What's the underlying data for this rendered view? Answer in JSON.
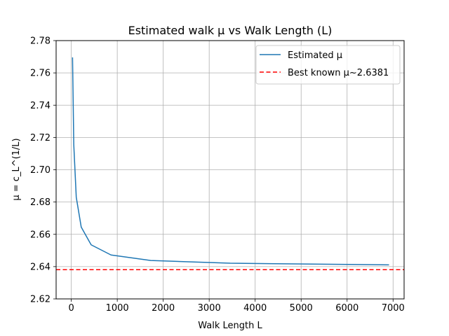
{
  "chart_data": {
    "type": "line",
    "title": "Estimated walk μ vs Walk Length (L)",
    "xlabel": "Walk Length L",
    "ylabel": "μ = c_L^(1/L)",
    "xlim": [
      -330,
      7240
    ],
    "ylim": [
      2.62,
      2.78
    ],
    "xticks": [
      0,
      1000,
      2000,
      3000,
      4000,
      5000,
      6000,
      7000
    ],
    "xtick_labels": [
      "0",
      "1000",
      "2000",
      "3000",
      "4000",
      "5000",
      "6000",
      "7000"
    ],
    "yticks": [
      2.62,
      2.64,
      2.66,
      2.68,
      2.7,
      2.72,
      2.74,
      2.76,
      2.78
    ],
    "ytick_labels": [
      "2.62",
      "2.64",
      "2.66",
      "2.68",
      "2.70",
      "2.72",
      "2.74",
      "2.76",
      "2.78"
    ],
    "grid": true,
    "legend_position": "top-right",
    "series": [
      {
        "name": "Estimated μ",
        "style": "solid",
        "color": "#1f77b4",
        "x": [
          27,
          54,
          108,
          216,
          432,
          864,
          1728,
          3456,
          6912
        ],
        "y": [
          2.7696,
          2.7155,
          2.683,
          2.6645,
          2.6535,
          2.6472,
          2.6438,
          2.6421,
          2.6411
        ]
      },
      {
        "name": "Best known μ~2.6381",
        "style": "dashed",
        "color": "#ff0000",
        "y_const": 2.6381
      }
    ]
  }
}
